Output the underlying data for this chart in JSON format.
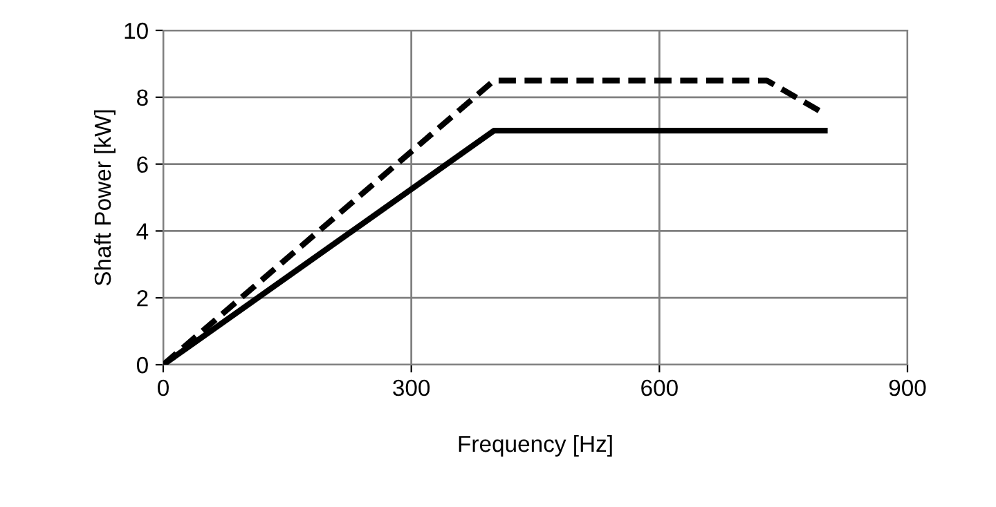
{
  "chart_data": {
    "type": "line",
    "xlabel": "Frequency [Hz]",
    "ylabel": "Shaft Power [kW]",
    "series": [
      {
        "color": "#000000",
        "x": [
          0,
          400,
          800
        ],
        "values": [
          0,
          7,
          7
        ],
        "line_style": "solid"
      },
      {
        "color": "#000000",
        "x": [
          0,
          400,
          730,
          800
        ],
        "values": [
          0,
          8.5,
          8.5,
          7.5
        ],
        "line_style": "dashed"
      }
    ],
    "xlim": [
      0,
      900
    ],
    "xticks": [
      0,
      300,
      600,
      900
    ],
    "ylim": [
      0,
      10
    ],
    "yticks": [
      0,
      2,
      4,
      6,
      8,
      10
    ],
    "grid": true,
    "legend": false,
    "marker": "none"
  }
}
